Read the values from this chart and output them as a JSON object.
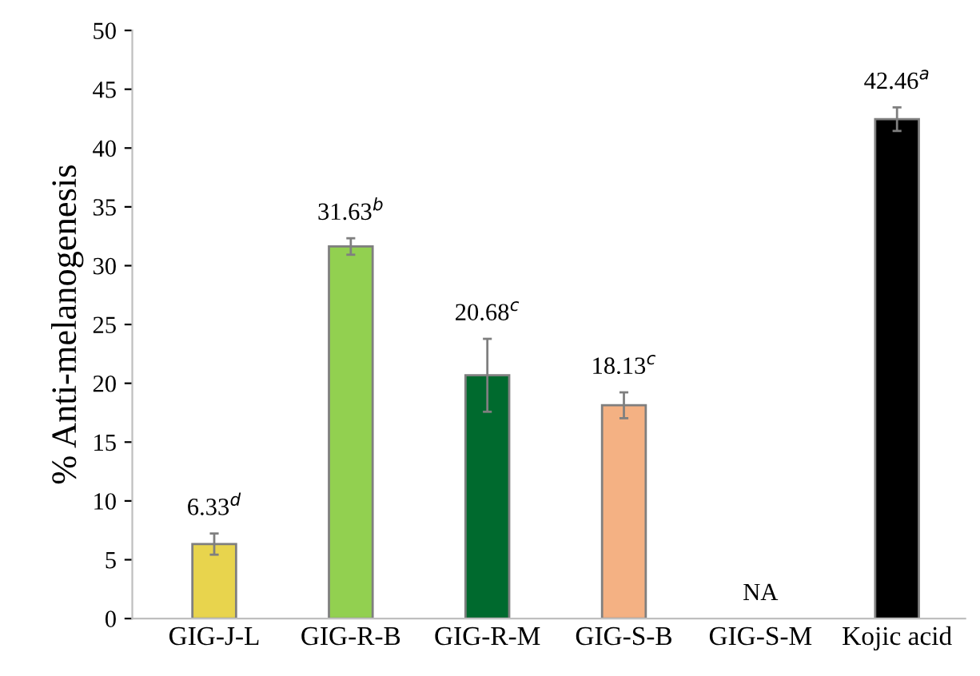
{
  "chart_data": {
    "type": "bar",
    "ylabel": "% Anti-melanogenesis",
    "categories": [
      "GIG-J-L",
      "GIG-R-B",
      "GIG-R-M",
      "GIG-S-B",
      "GIG-S-M",
      "Kojic acid"
    ],
    "values": [
      6.33,
      31.63,
      20.68,
      18.13,
      null,
      42.46
    ],
    "errors": [
      0.9,
      0.7,
      3.1,
      1.1,
      null,
      1.0
    ],
    "colors": [
      "#e8d44d",
      "#92d050",
      "#006a2e",
      "#f4b183",
      "#ffffff",
      "#000000"
    ],
    "value_labels": [
      "6.33$^{d}$",
      "31.63$^{b}$",
      "20.68$^{c}$",
      "18.13$^{c}$",
      "NA",
      "42.46$^{a}$"
    ],
    "ylim": [
      0,
      50
    ],
    "yticks": [
      0,
      5,
      10,
      15,
      20,
      25,
      30,
      35,
      40,
      45,
      50
    ],
    "grid": false,
    "legend": false
  }
}
